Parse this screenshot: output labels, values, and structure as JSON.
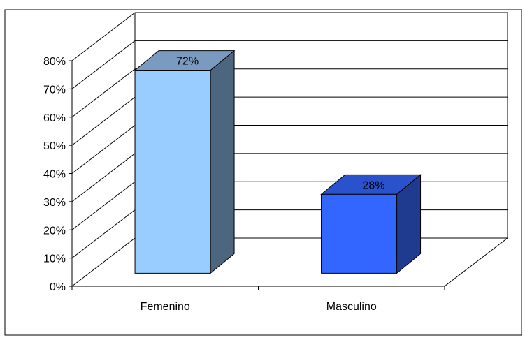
{
  "chart_data": {
    "type": "bar",
    "style": "3d-column",
    "categories": [
      "Femenino",
      "Masculino"
    ],
    "values": [
      72,
      28
    ],
    "data_labels": [
      "72%",
      "28%"
    ],
    "yticks": [
      "0%",
      "10%",
      "20%",
      "30%",
      "40%",
      "50%",
      "60%",
      "70%",
      "80%"
    ],
    "ylim": [
      0,
      80
    ],
    "grid": true,
    "legend": "none",
    "title": "",
    "xlabel": "",
    "ylabel": "",
    "colors": {
      "Femenino": {
        "front": "#99CCFF",
        "top": "#7A9BBF",
        "side": "#4D6680"
      },
      "Masculino": {
        "front": "#3366FF",
        "top": "#2952CC",
        "side": "#1F3B8F"
      }
    }
  }
}
